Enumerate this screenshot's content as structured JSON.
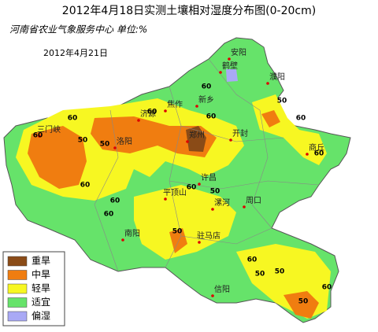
{
  "header": {
    "title": "2012年4月18日实测土壤相对湿度分布图(0-20cm)",
    "subtitle": "河南省农业气象服务中心 单位:%",
    "date": "2012年4月21日"
  },
  "cities": [
    "安阳",
    "鹤壁",
    "濮阳",
    "新乡",
    "焦作",
    "济源",
    "三门峡",
    "洛阳",
    "郑州",
    "开封",
    "商丘",
    "许昌",
    "平顶山",
    "漯河",
    "周口",
    "南阳",
    "驻马店",
    "信阳"
  ],
  "contour_labels": [
    60,
    60,
    50,
    60,
    60,
    50,
    60,
    50,
    60,
    60,
    60,
    50,
    60,
    50,
    60,
    50,
    60,
    60,
    50,
    60,
    50
  ],
  "legend": [
    "重旱",
    "中旱",
    "轻旱",
    "适宜",
    "偏湿"
  ]
}
